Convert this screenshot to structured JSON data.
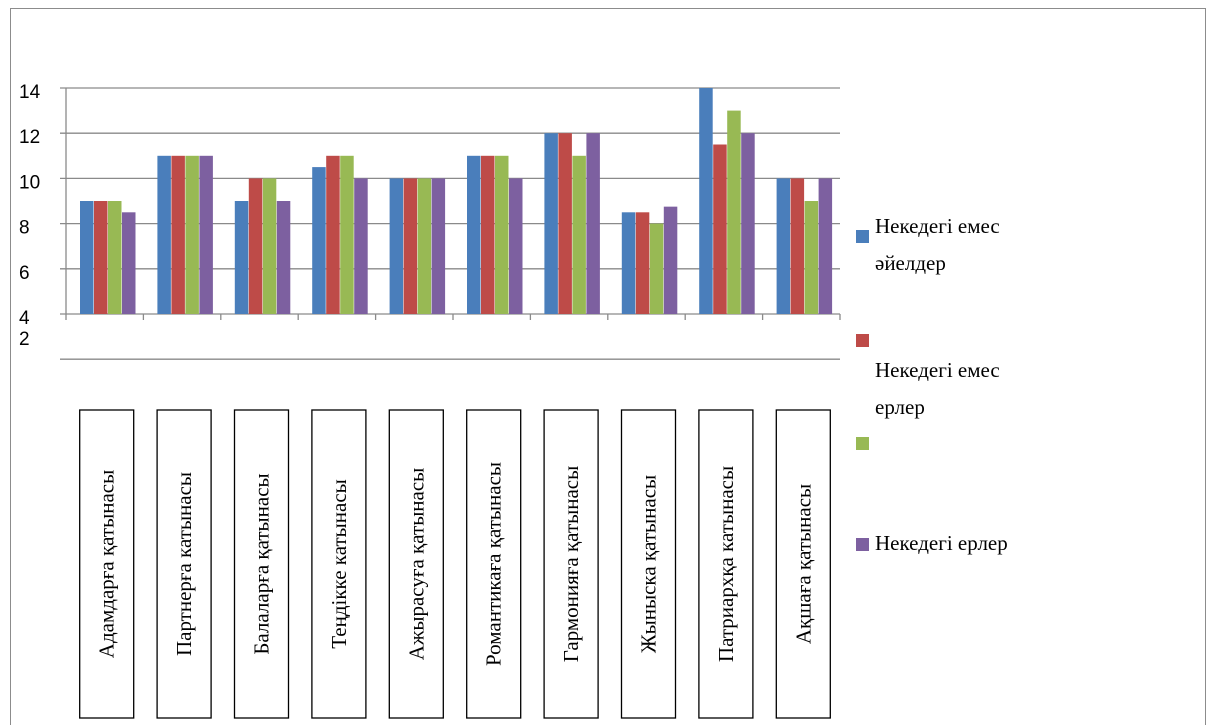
{
  "chart_data": {
    "type": "bar",
    "categories": [
      "Адамдарға қатынасы",
      "Партнерға катынасы",
      "Балаларға қатынасы",
      "Теңдікке катынасы",
      "Ажырасуға қатынасы",
      "Романтикаға қатынасы",
      "Гармонияға қатынасы",
      "Жыныска қатынасы",
      "Патриархқа катынасы",
      "Ақшаға қатынасы"
    ],
    "series": [
      {
        "name": "Некедегі емес әйелдер",
        "color": "#4a7ebb",
        "values": [
          9,
          11,
          9,
          10.5,
          10,
          11,
          12,
          8.5,
          14,
          10
        ]
      },
      {
        "name": "Некедегі емес ерлер",
        "color": "#be4b48",
        "values": [
          9,
          11,
          10,
          11,
          10,
          11,
          12,
          8.5,
          11.5,
          10
        ]
      },
      {
        "name": "",
        "color": "#98b954",
        "values": [
          9,
          11,
          10,
          11,
          10,
          11,
          11,
          8,
          13,
          9
        ]
      },
      {
        "name": "Некедегі ерлер",
        "color": "#7d60a0",
        "values": [
          8.5,
          11,
          9,
          10,
          10,
          10,
          12,
          8.75,
          12,
          10
        ]
      }
    ],
    "y_ticks": [
      "14",
      "12",
      "10",
      "8",
      "6",
      "4",
      "2"
    ],
    "ylim": [
      4,
      14
    ],
    "grid": true,
    "legend": "right"
  }
}
